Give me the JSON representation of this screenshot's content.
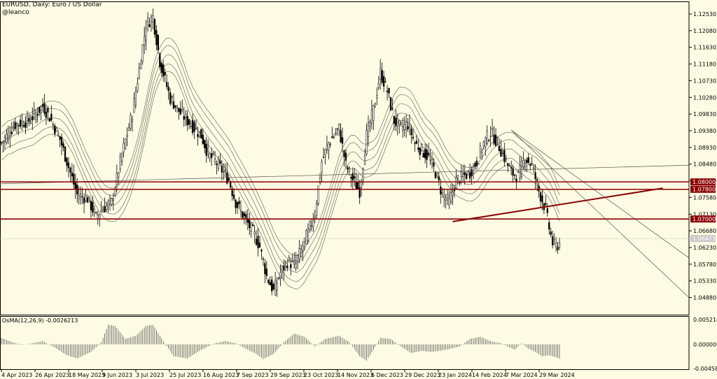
{
  "header": {
    "title": "EURUSD, Daily:  Euro / US Dollar",
    "source": "@leanco"
  },
  "indicator": {
    "label": "OsMA(12,26,9) -0.0026213"
  },
  "colors": {
    "background": "#fdfbe3",
    "candle": "#000000",
    "level_line": "#8b0000",
    "level_box": "#8b0000",
    "level_text": "#ffffff",
    "current_price_box": "#c8c8c8",
    "trendline": "#8b0000"
  },
  "chart_data": [
    {
      "type": "candlestick",
      "symbol": "EURUSD",
      "timeframe": "Daily",
      "ylim": [
        1.044,
        1.1285
      ],
      "y_ticks": [
        "1.12530",
        "1.12080",
        "1.11630",
        "1.11180",
        "1.10730",
        "1.10280",
        "1.09830",
        "1.09380",
        "1.08930",
        "1.08480",
        "1.08030",
        "1.07580",
        "1.07130",
        "1.06680",
        "1.06230",
        "1.05780",
        "1.05330",
        "1.04880"
      ],
      "x_ticks": [
        "4 Apr 2023",
        "26 Apr 2023",
        "18 May 2023",
        "9 Jun 2023",
        "3 Jul 2023",
        "25 Jul 2023",
        "16 Aug 2023",
        "7 Sep 2023",
        "29 Sep 2023",
        "23 Oct 2023",
        "14 Nov 2023",
        "6 Dec 2023",
        "29 Dec 2023",
        "23 Jan 2024",
        "14 Feb 2024",
        "7 Mar 2024",
        "29 Mar 2024"
      ],
      "price_path": [
        [
          0,
          1.0905
        ],
        [
          8,
          1.0955
        ],
        [
          16,
          1.0965
        ],
        [
          24,
          1.1005
        ],
        [
          28,
          1.0975
        ],
        [
          34,
          1.0915
        ],
        [
          38,
          1.0855
        ],
        [
          44,
          1.0765
        ],
        [
          50,
          1.0755
        ],
        [
          55,
          1.0705
        ],
        [
          58,
          1.0725
        ],
        [
          64,
          1.0745
        ],
        [
          70,
          1.0875
        ],
        [
          76,
          1.0985
        ],
        [
          80,
          1.1105
        ],
        [
          84,
          1.1225
        ],
        [
          88,
          1.1245
        ],
        [
          92,
          1.1125
        ],
        [
          98,
          1.1025
        ],
        [
          104,
          1.0985
        ],
        [
          110,
          1.0955
        ],
        [
          116,
          1.0925
        ],
        [
          120,
          1.0875
        ],
        [
          126,
          1.0845
        ],
        [
          132,
          1.0805
        ],
        [
          136,
          1.0745
        ],
        [
          142,
          1.0695
        ],
        [
          146,
          1.0665
        ],
        [
          150,
          1.0625
        ],
        [
          154,
          1.0545
        ],
        [
          158,
          1.0505
        ],
        [
          162,
          1.0555
        ],
        [
          166,
          1.0585
        ],
        [
          170,
          1.0575
        ],
        [
          174,
          1.0615
        ],
        [
          178,
          1.0665
        ],
        [
          182,
          1.0715
        ],
        [
          186,
          1.0855
        ],
        [
          190,
          1.0905
        ],
        [
          196,
          1.0945
        ],
        [
          200,
          1.0845
        ],
        [
          204,
          1.0805
        ],
        [
          208,
          1.0775
        ],
        [
          212,
          1.0925
        ],
        [
          216,
          1.0995
        ],
        [
          220,
          1.1095
        ],
        [
          224,
          1.1045
        ],
        [
          228,
          1.0965
        ],
        [
          232,
          1.0945
        ],
        [
          236,
          1.0955
        ],
        [
          240,
          1.0905
        ],
        [
          244,
          1.0885
        ],
        [
          248,
          1.0865
        ],
        [
          252,
          1.0825
        ],
        [
          256,
          1.0765
        ],
        [
          260,
          1.0745
        ],
        [
          264,
          1.0805
        ],
        [
          268,
          1.0815
        ],
        [
          272,
          1.0825
        ],
        [
          276,
          1.0855
        ],
        [
          280,
          1.0905
        ],
        [
          284,
          1.0935
        ],
        [
          288,
          1.0905
        ],
        [
          292,
          1.0865
        ],
        [
          296,
          1.0825
        ],
        [
          300,
          1.0815
        ],
        [
          304,
          1.0865
        ],
        [
          308,
          1.0845
        ],
        [
          312,
          1.0775
        ],
        [
          316,
          1.0725
        ],
        [
          318,
          1.0675
        ],
        [
          320,
          1.0635
        ],
        [
          322,
          1.0625
        ],
        [
          324,
          1.0635
        ]
      ],
      "current_price": "1.06473",
      "horizontal_levels": [
        {
          "label": "1.08000",
          "value": 1.08
        },
        {
          "label": "1.07800",
          "value": 1.078
        },
        {
          "label": "1.07000",
          "value": 1.07
        }
      ],
      "trendlines": [
        {
          "from": [
            262,
            1.0693
          ],
          "to": [
            384,
            1.0783
          ]
        },
        {
          "from": [
            0,
            1.0795
          ],
          "to": [
            400,
            1.0845
          ]
        },
        {
          "from": [
            296,
            1.094
          ],
          "to": [
            400,
            1.0595
          ]
        },
        {
          "from": [
            296,
            1.094
          ],
          "to": [
            400,
            1.0488
          ]
        }
      ]
    },
    {
      "type": "bar",
      "title": "OsMA(12,26,9)",
      "last_value": -0.0026213,
      "ylim": [
        -0.0045822,
        0.0052148
      ],
      "y_ticks": [
        "0.0052148",
        "0.0000000",
        "-0.0045822"
      ],
      "x_ticks": [
        "4 Apr 2023",
        "26 Apr 2023",
        "18 May 2023",
        "9 Jun 2023",
        "3 Jul 2023",
        "25 Jul 2023",
        "16 Aug 2023",
        "7 Sep 2023",
        "29 Sep 2023",
        "23 Oct 2023",
        "14 Nov 2023",
        "6 Dec 2023",
        "29 Dec 2023",
        "23 Jan 2024",
        "14 Feb 2024",
        "7 Mar 2024",
        "29 Mar 2024"
      ],
      "values_path": [
        [
          0,
          0.0012
        ],
        [
          6,
          0.0004
        ],
        [
          12,
          -0.0001
        ],
        [
          18,
          0.0002
        ],
        [
          24,
          0.0006
        ],
        [
          30,
          -0.0004
        ],
        [
          38,
          -0.002
        ],
        [
          44,
          -0.0026
        ],
        [
          52,
          -0.0014
        ],
        [
          58,
          0.0004
        ],
        [
          62,
          0.0036
        ],
        [
          66,
          0.0034
        ],
        [
          72,
          0.001
        ],
        [
          78,
          0.0016
        ],
        [
          84,
          0.0034
        ],
        [
          88,
          0.0036
        ],
        [
          94,
          0.0006
        ],
        [
          100,
          -0.0022
        ],
        [
          108,
          -0.0026
        ],
        [
          116,
          -0.001
        ],
        [
          124,
          0.0002
        ],
        [
          130,
          0.0006
        ],
        [
          136,
          0.0002
        ],
        [
          142,
          -0.0008
        ],
        [
          148,
          -0.0018
        ],
        [
          152,
          -0.0027
        ],
        [
          158,
          -0.0018
        ],
        [
          164,
          0.0004
        ],
        [
          170,
          0.002
        ],
        [
          176,
          0.0014
        ],
        [
          182,
          -0.0004
        ],
        [
          188,
          0.001
        ],
        [
          196,
          0.0016
        ],
        [
          202,
          0.0004
        ],
        [
          208,
          -0.0022
        ],
        [
          212,
          -0.003
        ],
        [
          216,
          -0.001
        ],
        [
          220,
          0.0012
        ],
        [
          226,
          0.001
        ],
        [
          232,
          -0.0004
        ],
        [
          238,
          -0.0016
        ],
        [
          244,
          -0.0012
        ],
        [
          250,
          -0.0014
        ],
        [
          258,
          -0.001
        ],
        [
          266,
          -0.0004
        ],
        [
          272,
          0.001
        ],
        [
          278,
          0.0014
        ],
        [
          284,
          0.0006
        ],
        [
          290,
          0.0002
        ],
        [
          294,
          -0.0004
        ],
        [
          298,
          -0.001
        ],
        [
          302,
          0.0002
        ],
        [
          306,
          -0.0008
        ],
        [
          310,
          -0.0014
        ],
        [
          314,
          -0.0022
        ],
        [
          318,
          -0.002
        ],
        [
          324,
          -0.0026
        ]
      ]
    }
  ]
}
